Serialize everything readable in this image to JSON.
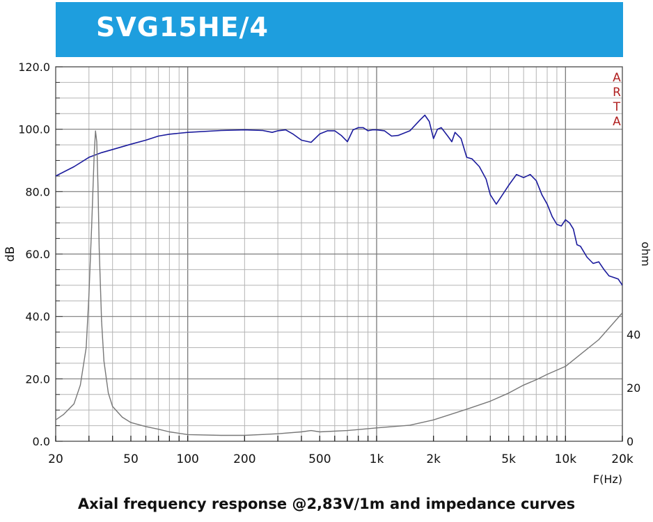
{
  "title": "SVG15HE/4",
  "caption": "Axial frequency response @2,83V/1m and impedance curves",
  "watermark": [
    "A",
    "R",
    "T",
    "A"
  ],
  "colors": {
    "title_bg": "#1e9ede",
    "spl": "#1a1a9c",
    "impedance": "#777777",
    "watermark": "#b02020"
  },
  "chart_data": {
    "type": "line",
    "xlabel": "F(Hz)",
    "ylabel": "dB",
    "ylabel_right": "ohm",
    "x_scale": "log",
    "xlim": [
      20,
      20000
    ],
    "ylim": [
      0,
      120
    ],
    "y2lim": [
      0,
      140
    ],
    "grid": true,
    "x_ticks": [
      {
        "v": 20,
        "label": "20"
      },
      {
        "v": 50,
        "label": "50"
      },
      {
        "v": 100,
        "label": "100"
      },
      {
        "v": 200,
        "label": "200"
      },
      {
        "v": 500,
        "label": "500"
      },
      {
        "v": 1000,
        "label": "1k"
      },
      {
        "v": 2000,
        "label": "2k"
      },
      {
        "v": 5000,
        "label": "5k"
      },
      {
        "v": 10000,
        "label": "10k"
      },
      {
        "v": 20000,
        "label": "20k"
      }
    ],
    "y_ticks": [
      {
        "v": 0,
        "label": "0.0"
      },
      {
        "v": 20,
        "label": "20.0"
      },
      {
        "v": 40,
        "label": "40.0"
      },
      {
        "v": 60,
        "label": "60.0"
      },
      {
        "v": 80,
        "label": "80.0"
      },
      {
        "v": 100,
        "label": "100.0"
      },
      {
        "v": 120,
        "label": "120.0"
      }
    ],
    "y2_ticks": [
      {
        "v": 0,
        "label": "0"
      },
      {
        "v": 20,
        "label": "20"
      },
      {
        "v": 40,
        "label": "40"
      }
    ],
    "series": [
      {
        "role": "spl",
        "axis": "left",
        "color": "#1a1a9c",
        "x": [
          20,
          25,
          30,
          35,
          40,
          50,
          60,
          70,
          80,
          100,
          150,
          200,
          250,
          280,
          300,
          330,
          360,
          400,
          450,
          500,
          550,
          600,
          650,
          700,
          750,
          800,
          850,
          900,
          950,
          1000,
          1100,
          1200,
          1300,
          1500,
          1700,
          1800,
          1900,
          2000,
          2100,
          2200,
          2400,
          2500,
          2600,
          2800,
          3000,
          3200,
          3500,
          3800,
          4000,
          4300,
          4700,
          5000,
          5500,
          6000,
          6500,
          7000,
          7500,
          8000,
          8500,
          9000,
          9500,
          10000,
          10500,
          11000,
          11500,
          12000,
          13000,
          14000,
          15000,
          16000,
          17000,
          18000,
          19000,
          20000
        ],
        "y": [
          85,
          88,
          91,
          92.5,
          93.5,
          95.2,
          96.5,
          97.8,
          98.4,
          99,
          99.6,
          99.8,
          99.6,
          99,
          99.5,
          99.8,
          98.5,
          96.5,
          95.8,
          98.5,
          99.5,
          99.5,
          98,
          96,
          99.8,
          100.5,
          100.5,
          99.5,
          99.8,
          99.8,
          99.5,
          97.8,
          98,
          99.5,
          103,
          104.5,
          102.5,
          97,
          100,
          100.5,
          97.5,
          96,
          99,
          97,
          91,
          90.5,
          88,
          84,
          79,
          76,
          79.5,
          82,
          85.5,
          84.5,
          85.5,
          83.5,
          79,
          76,
          72,
          69.5,
          69,
          71,
          70,
          68,
          63,
          62.5,
          59,
          57,
          57.5,
          55,
          53,
          52.5,
          52,
          50
        ]
      },
      {
        "role": "impedance",
        "axis": "right",
        "color": "#777777",
        "x": [
          20,
          22,
          25,
          27,
          29,
          30,
          31,
          32,
          32.5,
          33,
          33.5,
          34,
          35,
          36,
          38,
          40,
          45,
          50,
          60,
          70,
          80,
          100,
          150,
          200,
          300,
          400,
          450,
          500,
          700,
          1000,
          1500,
          2000,
          3000,
          4000,
          5000,
          6000,
          7000,
          8000,
          10000,
          15000,
          20000
        ],
        "y": [
          8,
          10,
          14,
          21,
          35,
          55,
          80,
          108,
          116,
          112,
          95,
          72,
          45,
          30,
          18,
          13,
          9,
          7,
          5.5,
          4.5,
          3.5,
          2.5,
          2.2,
          2.2,
          2.8,
          3.5,
          4,
          3.5,
          4,
          5,
          6,
          8,
          12,
          15,
          18,
          21,
          23,
          25,
          28,
          38,
          48
        ]
      }
    ]
  }
}
